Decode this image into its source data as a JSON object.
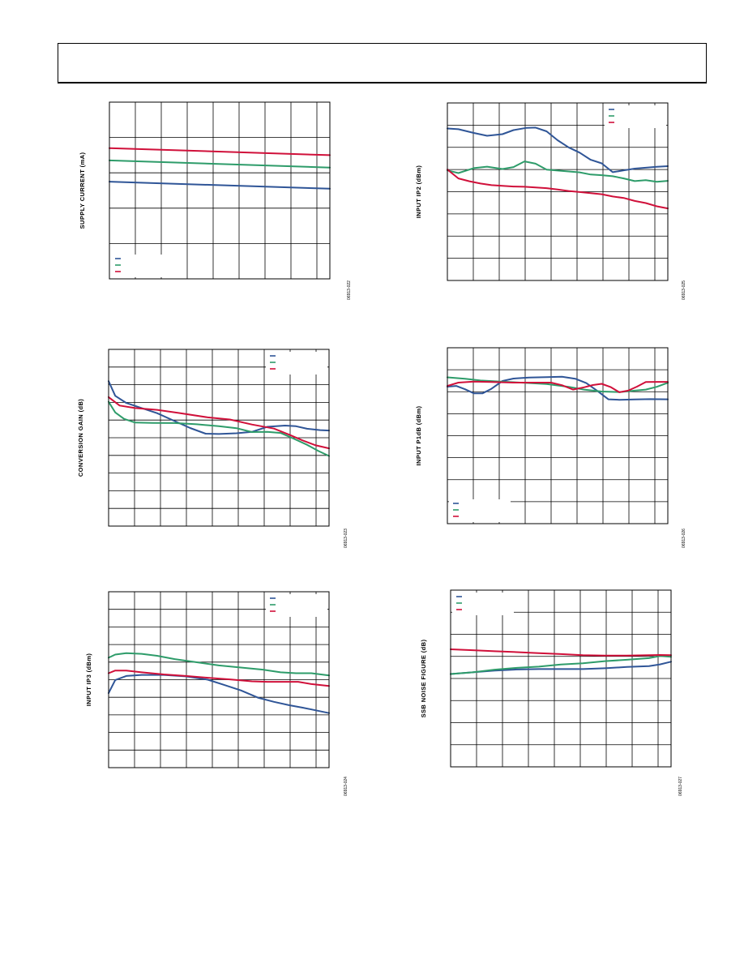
{
  "page": {
    "header_text": ""
  },
  "colors": {
    "blue": "#2f5597",
    "green": "#2e9c6a",
    "red": "#d0103a",
    "grid": "#000000"
  },
  "chart_data": [
    {
      "id": "supply-current",
      "type": "line",
      "ylabel": "SUPPLY CURRENT (mA)",
      "figure_id": "06913-022",
      "grid_cols": 8.5,
      "grid_rows": 5,
      "xlim": [
        0,
        100
      ],
      "ylim": [
        0,
        100
      ],
      "legend": "bottom-left",
      "series": [
        {
          "color": "blue",
          "x": [
            0,
            100
          ],
          "y": [
            55,
            51
          ]
        },
        {
          "color": "green",
          "x": [
            0,
            100
          ],
          "y": [
            67,
            63
          ]
        },
        {
          "color": "red",
          "x": [
            0,
            100
          ],
          "y": [
            74,
            70
          ]
        }
      ]
    },
    {
      "id": "input-ip2",
      "type": "line",
      "ylabel": "INPUT IP2 (dBm)",
      "figure_id": "06913-025",
      "grid_cols": 8.5,
      "grid_rows": 8,
      "xlim": [
        0,
        100
      ],
      "ylim": [
        0,
        100
      ],
      "legend": "top-right",
      "series": [
        {
          "color": "blue",
          "x": [
            0,
            5,
            12,
            18,
            25,
            30,
            36,
            40,
            45,
            50,
            55,
            60,
            65,
            70,
            75,
            80,
            85,
            90,
            95,
            100
          ],
          "y": [
            85.6,
            85.2,
            83.1,
            81.5,
            82.4,
            84.7,
            86,
            86.1,
            84,
            79,
            75,
            72,
            68,
            66,
            61,
            62,
            63,
            63.5,
            64,
            64.4
          ]
        },
        {
          "color": "green",
          "x": [
            0,
            5,
            12,
            18,
            25,
            30,
            35,
            40,
            45,
            50,
            55,
            60,
            65,
            70,
            75,
            80,
            85,
            90,
            95,
            100
          ],
          "y": [
            62,
            60.5,
            63.3,
            64.1,
            62.8,
            63.9,
            67.1,
            65.8,
            62.4,
            61.9,
            61.4,
            60.9,
            59.7,
            59.3,
            58.7,
            57.5,
            56,
            56.5,
            55.6,
            56.1
          ]
        },
        {
          "color": "red",
          "x": [
            0,
            5,
            10,
            15,
            20,
            25,
            30,
            35,
            40,
            45,
            50,
            55,
            60,
            65,
            70,
            75,
            80,
            85,
            90,
            95,
            100
          ],
          "y": [
            62.5,
            57.5,
            55.9,
            54.6,
            53.7,
            53.3,
            52.9,
            52.8,
            52.4,
            52,
            51.3,
            50.4,
            49.8,
            49.2,
            48.6,
            47.3,
            46.5,
            44.8,
            43.6,
            41.8,
            40.6
          ]
        }
      ]
    },
    {
      "id": "conversion-gain",
      "type": "line",
      "ylabel": "CONVERSION GAIN (dB)",
      "figure_id": "06913-023",
      "grid_cols": 8.5,
      "grid_rows": 10,
      "xlim": [
        0,
        100
      ],
      "ylim": [
        0,
        100
      ],
      "legend": "top-right",
      "series": [
        {
          "color": "blue",
          "x": [
            0,
            3,
            8,
            15,
            22,
            30,
            37,
            44,
            50,
            58,
            65,
            72,
            80,
            85,
            90,
            96,
            100
          ],
          "y": [
            82,
            73.7,
            69.7,
            66.8,
            63.9,
            59.4,
            55.5,
            52.3,
            52.1,
            52.5,
            53.3,
            56.2,
            56.9,
            56.5,
            55.1,
            54.3,
            54.1
          ]
        },
        {
          "color": "green",
          "x": [
            0,
            3,
            7,
            12,
            20,
            30,
            40,
            50,
            58,
            65,
            72,
            78,
            83,
            90,
            95,
            100
          ],
          "y": [
            70.3,
            64.3,
            60.7,
            58.6,
            58.4,
            58.3,
            57.6,
            56.5,
            55.4,
            53.2,
            53.3,
            52.7,
            50,
            46,
            42.6,
            39.7
          ]
        },
        {
          "color": "red",
          "x": [
            0,
            5,
            12,
            22,
            32,
            45,
            55,
            65,
            75,
            82,
            88,
            94,
            100
          ],
          "y": [
            73,
            68.2,
            66.8,
            65.8,
            64,
            61.5,
            60.3,
            57.5,
            55.2,
            51.7,
            48.5,
            45.7,
            44
          ]
        }
      ]
    },
    {
      "id": "input-p1db",
      "type": "line",
      "ylabel": "INPUT P1dB (dBm)",
      "figure_id": "06913-026",
      "grid_cols": 8.5,
      "grid_rows": 8,
      "xlim": [
        0,
        100
      ],
      "ylim": [
        0,
        100
      ],
      "legend": "bottom-left",
      "series": [
        {
          "color": "blue",
          "x": [
            0,
            4,
            8,
            12,
            16,
            20,
            25,
            30,
            37,
            45,
            52,
            58,
            63,
            68,
            73,
            78,
            85,
            92,
            100
          ],
          "y": [
            77.9,
            78.3,
            76.4,
            74.1,
            74.1,
            76.7,
            81.1,
            82.5,
            83.1,
            83.3,
            83.5,
            82.4,
            79.9,
            75.5,
            70.7,
            70.4,
            70.6,
            70.8,
            70.7
          ]
        },
        {
          "color": "green",
          "x": [
            0,
            8,
            15,
            25,
            35,
            45,
            55,
            62,
            70,
            78,
            85,
            90,
            95,
            100
          ],
          "y": [
            83.2,
            82.4,
            81.4,
            80.7,
            80.1,
            79.4,
            77.8,
            76.2,
            75.1,
            74.8,
            75.6,
            76.2,
            77.8,
            80.1
          ]
        },
        {
          "color": "red",
          "x": [
            0,
            5,
            12,
            20,
            30,
            40,
            47,
            52,
            57,
            62,
            66,
            70,
            74,
            78,
            82,
            86,
            90,
            95,
            100
          ],
          "y": [
            78.3,
            80.2,
            80.8,
            80.5,
            80.2,
            80.2,
            80.2,
            78.7,
            76.2,
            77.5,
            78.8,
            79.5,
            77.7,
            74.7,
            75.6,
            77.9,
            80.5,
            80.6,
            80.6
          ]
        }
      ]
    },
    {
      "id": "input-ip3",
      "type": "line",
      "ylabel": "INPUT IP3 (dBm)",
      "figure_id": "06913-024",
      "grid_cols": 8.5,
      "grid_rows": 10,
      "xlim": [
        0,
        100
      ],
      "ylim": [
        0,
        100
      ],
      "legend": "top-right",
      "series": [
        {
          "color": "blue",
          "x": [
            0,
            3,
            8,
            15,
            25,
            35,
            45,
            52,
            60,
            68,
            75,
            82,
            88,
            94,
            100
          ],
          "y": [
            42.4,
            49.8,
            52.1,
            52.7,
            52.7,
            51.9,
            50,
            47.2,
            43.9,
            39.7,
            37.4,
            35.5,
            34.1,
            32.6,
            31
          ]
        },
        {
          "color": "green",
          "x": [
            0,
            3,
            8,
            15,
            22,
            30,
            40,
            50,
            60,
            70,
            78,
            85,
            92,
            100
          ],
          "y": [
            62.5,
            64.3,
            65.1,
            64.7,
            63.6,
            61.7,
            59.9,
            58.1,
            56.9,
            55.7,
            54.2,
            53.7,
            53.7,
            52.4
          ]
        },
        {
          "color": "red",
          "x": [
            0,
            3,
            8,
            15,
            25,
            35,
            45,
            55,
            65,
            72,
            80,
            86,
            92,
            100
          ],
          "y": [
            53.7,
            55.2,
            55.2,
            54.2,
            53,
            52.1,
            51.1,
            50.2,
            49.1,
            48.8,
            48.8,
            48.8,
            47.5,
            46.4
          ]
        }
      ]
    },
    {
      "id": "ssb-noise-figure",
      "type": "line",
      "ylabel": "SSB NOISE FIGURE (dB)",
      "figure_id": "06913-027",
      "grid_cols": 8.5,
      "grid_rows": 8,
      "xlim": [
        0,
        100
      ],
      "ylim": [
        0,
        100
      ],
      "legend": "top-left",
      "series": [
        {
          "color": "blue",
          "x": [
            0,
            10,
            20,
            30,
            40,
            50,
            60,
            70,
            80,
            90,
            95,
            100
          ],
          "y": [
            52.5,
            53.5,
            54.5,
            55.1,
            55.3,
            55.3,
            55.3,
            55.8,
            56.5,
            57,
            58,
            59.5
          ]
        },
        {
          "color": "green",
          "x": [
            0,
            10,
            20,
            30,
            40,
            50,
            60,
            70,
            80,
            90,
            95,
            100
          ],
          "y": [
            52.5,
            53.5,
            55,
            56,
            56.7,
            57.9,
            58.6,
            59.8,
            60.6,
            61.5,
            62.7,
            62.3
          ]
        },
        {
          "color": "red",
          "x": [
            0,
            10,
            20,
            30,
            40,
            50,
            60,
            70,
            80,
            90,
            95,
            100
          ],
          "y": [
            66.5,
            66,
            65.4,
            64.9,
            64.3,
            63.8,
            63.2,
            63,
            63,
            63.2,
            63.3,
            63.2
          ]
        }
      ]
    }
  ]
}
